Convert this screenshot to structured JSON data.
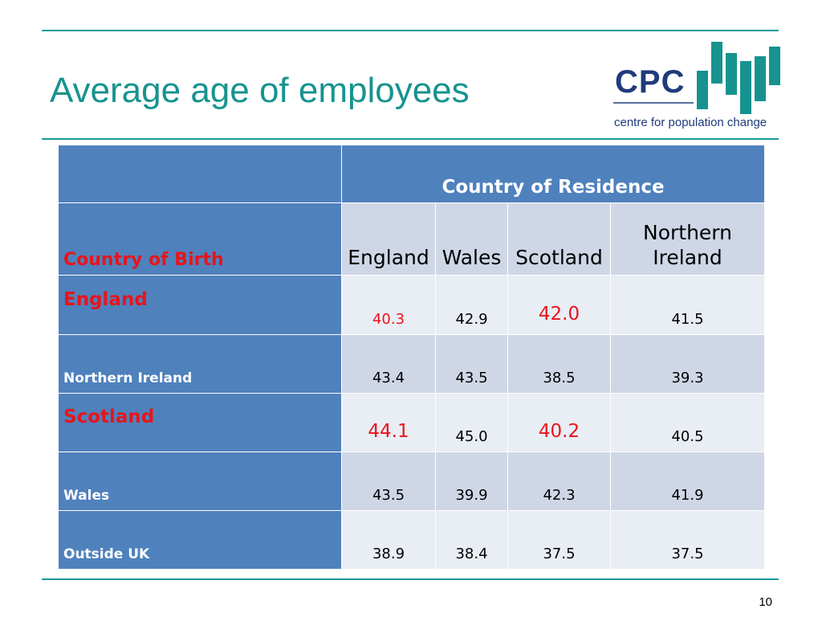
{
  "slide": {
    "title": "Average age of employees",
    "page_number": "10"
  },
  "logo": {
    "text": "CPC",
    "tagline": "centre for population change"
  },
  "table": {
    "group_header": "Country of Residence",
    "birth_header": "Country of Birth",
    "columns": [
      "England",
      "Wales",
      "Scotland",
      "Northern\nIreland"
    ],
    "rows": [
      {
        "label": "England",
        "values": [
          "40.3",
          "42.9",
          "42.0",
          "41.5"
        ]
      },
      {
        "label": "Northern Ireland",
        "values": [
          "43.4",
          "43.5",
          "38.5",
          "39.3"
        ]
      },
      {
        "label": "Scotland",
        "values": [
          "44.1",
          "45.0",
          "40.2",
          "40.5"
        ]
      },
      {
        "label": "Wales",
        "values": [
          "43.5",
          "39.9",
          "42.3",
          "41.9"
        ]
      },
      {
        "label": "Outside UK",
        "values": [
          "38.9",
          "38.4",
          "37.5",
          "37.5"
        ]
      }
    ]
  },
  "colors": {
    "accent": "#17938f",
    "table_header": "#4f81bd",
    "highlight": "#e8141b",
    "logo_blue": "#1f3b7a"
  }
}
